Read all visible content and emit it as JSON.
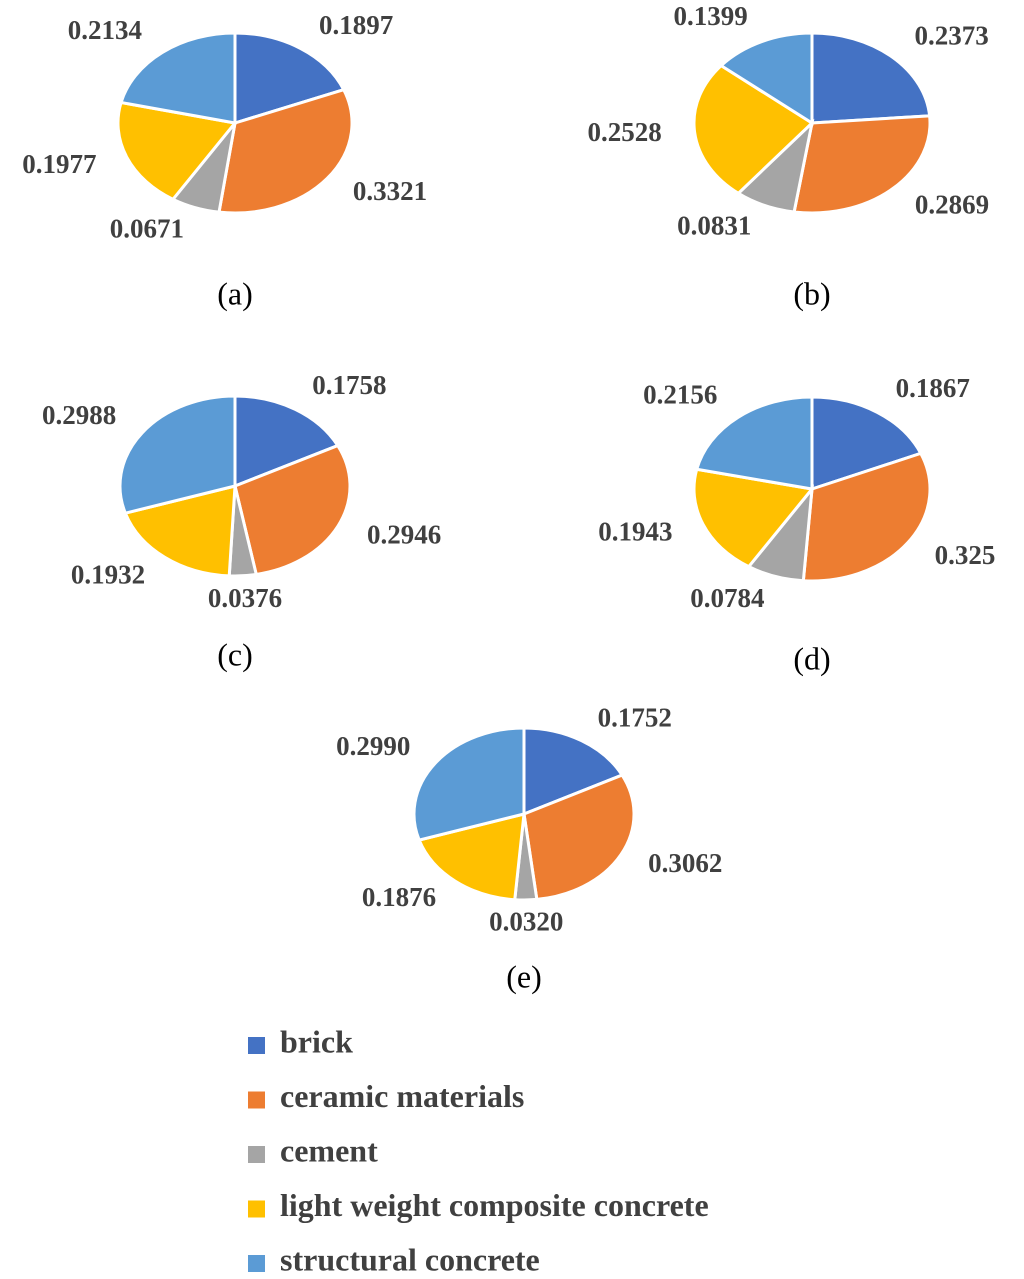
{
  "chart_data": [
    {
      "type": "pie",
      "title": "(a)",
      "values": [
        0.1897,
        0.3321,
        0.0671,
        0.1977,
        0.2134
      ]
    },
    {
      "type": "pie",
      "title": "(b)",
      "values": [
        0.2373,
        0.2869,
        0.0831,
        0.2528,
        0.1399
      ]
    },
    {
      "type": "pie",
      "title": "(c)",
      "values": [
        0.1758,
        0.2946,
        0.0376,
        0.1932,
        0.2988
      ]
    },
    {
      "type": "pie",
      "title": "(d)",
      "values": [
        0.1867,
        0.325,
        0.0784,
        0.1943,
        0.2156
      ]
    },
    {
      "type": "pie",
      "title": "(e)",
      "values": [
        0.1752,
        0.3062,
        0.032,
        0.1876,
        0.299
      ],
      "value_labels": [
        "0.1752",
        "0.3062",
        "0.0320",
        "0.1876",
        "0.2990"
      ]
    }
  ],
  "legend": {
    "labels": [
      "brick",
      "ceramic materials",
      "cement",
      "light weight composite concrete",
      "structural concrete"
    ],
    "colors": [
      "#4472c4",
      "#ed7d31",
      "#a5a5a5",
      "#ffc000",
      "#5b9bd5"
    ]
  }
}
